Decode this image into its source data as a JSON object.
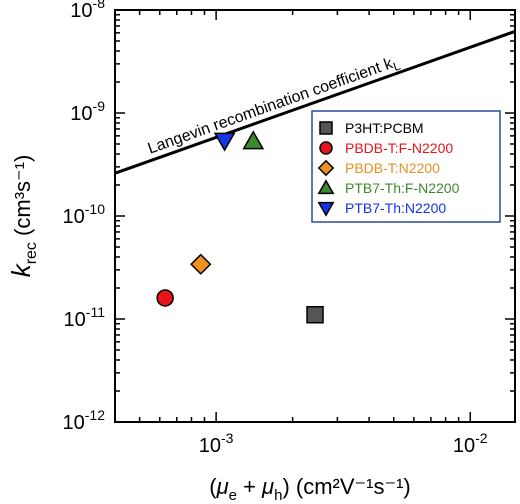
{
  "chart_data": {
    "type": "scatter",
    "x_scale": "log",
    "y_scale": "log",
    "xlim": [
      0.0004,
      0.015
    ],
    "ylim": [
      1e-12,
      1e-08
    ],
    "x_ticks": [
      {
        "value": 0.001,
        "base": "10",
        "exp": "-3"
      },
      {
        "value": 0.01,
        "base": "10",
        "exp": "-2"
      }
    ],
    "y_ticks": [
      {
        "value": 1e-12,
        "base": "10",
        "exp": "-12"
      },
      {
        "value": 1e-11,
        "base": "10",
        "exp": "-11"
      },
      {
        "value": 1e-10,
        "base": "10",
        "exp": "-10"
      },
      {
        "value": 1e-09,
        "base": "10",
        "exp": "-9"
      },
      {
        "value": 1e-08,
        "base": "10",
        "exp": "-8"
      }
    ],
    "xlabel": {
      "open": "(",
      "mu1": "μ",
      "sub1": "e",
      "plus": " + ",
      "mu2": "μ",
      "sub2": "h",
      "close": ")",
      "units": "(cm²V⁻¹s⁻¹)"
    },
    "ylabel": {
      "k": "k",
      "sub": "rec",
      "units": "(cm³s⁻¹)"
    },
    "grid": false,
    "legend_position": "top-right",
    "series": [
      {
        "name": "P3HT:PCBM",
        "marker": "square",
        "color": "#555555",
        "text_color": "#000000",
        "x": 0.00245,
        "y": 1.1e-11
      },
      {
        "name": "PBDB-T:F-N2200",
        "marker": "circle",
        "color": "#e8141c",
        "text_color": "#e8141c",
        "x": 0.00063,
        "y": 1.6e-11
      },
      {
        "name": "PBDB-T:N2200",
        "marker": "diamond",
        "color": "#f0921e",
        "text_color": "#e89020",
        "x": 0.00087,
        "y": 3.4e-11
      },
      {
        "name": "PTB7-Th:F-N2200",
        "marker": "triangle-up",
        "color": "#3c8a2e",
        "text_color": "#3c8a2e",
        "x": 0.0014,
        "y": 5.3e-10
      },
      {
        "name": "PTB7-Th:N2200",
        "marker": "triangle-down",
        "color": "#1535e8",
        "text_color": "#1535e8",
        "x": 0.00108,
        "y": 5.4e-10
      }
    ],
    "reference_line": {
      "label": "Langevin recombination coefficient k",
      "label_sub": "L",
      "points": [
        [
          0.0004,
          2.6e-10
        ],
        [
          0.015,
          6.2e-09
        ]
      ]
    }
  }
}
